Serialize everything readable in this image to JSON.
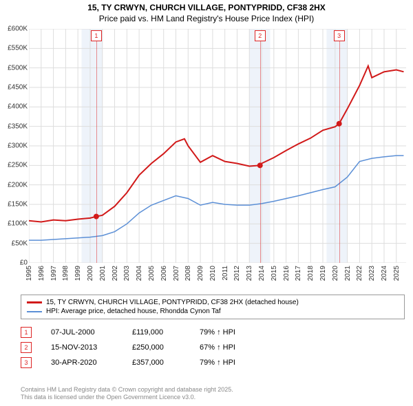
{
  "title_line1": "15, TY CRWYN, CHURCH VILLAGE, PONTYPRIDD, CF38 2HX",
  "title_line2": "Price paid vs. HM Land Registry's House Price Index (HPI)",
  "chart": {
    "type": "line",
    "background_color": "#ffffff",
    "plot_background_color": "#ffffff",
    "grid_color": "#dddddd",
    "shaded_color": "#eef3fa",
    "ylim": [
      0,
      600000
    ],
    "ytick_step": 50000,
    "ytick_labels": [
      "£0",
      "£50K",
      "£100K",
      "£150K",
      "£200K",
      "£250K",
      "£300K",
      "£350K",
      "£400K",
      "£450K",
      "£500K",
      "£550K",
      "£600K"
    ],
    "xlim": [
      1995,
      2025.8
    ],
    "xticks": [
      1995,
      1996,
      1997,
      1998,
      1999,
      2000,
      2001,
      2002,
      2003,
      2004,
      2005,
      2006,
      2007,
      2008,
      2009,
      2010,
      2011,
      2012,
      2013,
      2014,
      2015,
      2016,
      2017,
      2018,
      2019,
      2020,
      2021,
      2022,
      2023,
      2024,
      2025
    ],
    "shaded_bands": [
      [
        1999.3,
        2001.0
      ],
      [
        2013.0,
        2014.7
      ],
      [
        2019.3,
        2021.0
      ]
    ],
    "series": [
      {
        "name": "property",
        "color": "#d11919",
        "line_width": 2,
        "label": "15, TY CRWYN, CHURCH VILLAGE, PONTYPRIDD, CF38 2HX (detached house)",
        "points": [
          [
            1995,
            108000
          ],
          [
            1996,
            105000
          ],
          [
            1997,
            110000
          ],
          [
            1998,
            108000
          ],
          [
            1999,
            112000
          ],
          [
            2000,
            115000
          ],
          [
            2000.5,
            119000
          ],
          [
            2001,
            122000
          ],
          [
            2002,
            145000
          ],
          [
            2003,
            180000
          ],
          [
            2004,
            225000
          ],
          [
            2005,
            255000
          ],
          [
            2006,
            280000
          ],
          [
            2007,
            310000
          ],
          [
            2007.7,
            318000
          ],
          [
            2008,
            300000
          ],
          [
            2009,
            258000
          ],
          [
            2010,
            275000
          ],
          [
            2011,
            260000
          ],
          [
            2012,
            255000
          ],
          [
            2013,
            248000
          ],
          [
            2013.87,
            250000
          ],
          [
            2014,
            255000
          ],
          [
            2015,
            270000
          ],
          [
            2016,
            288000
          ],
          [
            2017,
            305000
          ],
          [
            2018,
            320000
          ],
          [
            2019,
            340000
          ],
          [
            2020,
            349000
          ],
          [
            2020.33,
            357000
          ],
          [
            2021,
            395000
          ],
          [
            2022,
            455000
          ],
          [
            2022.7,
            505000
          ],
          [
            2023,
            475000
          ],
          [
            2024,
            490000
          ],
          [
            2025,
            495000
          ],
          [
            2025.6,
            490000
          ]
        ]
      },
      {
        "name": "hpi",
        "color": "#5b8fd6",
        "line_width": 1.5,
        "label": "HPI: Average price, detached house, Rhondda Cynon Taf",
        "points": [
          [
            1995,
            58000
          ],
          [
            1996,
            58000
          ],
          [
            1997,
            60000
          ],
          [
            1998,
            62000
          ],
          [
            1999,
            64000
          ],
          [
            2000,
            66000
          ],
          [
            2001,
            70000
          ],
          [
            2002,
            80000
          ],
          [
            2003,
            100000
          ],
          [
            2004,
            128000
          ],
          [
            2005,
            148000
          ],
          [
            2006,
            160000
          ],
          [
            2007,
            172000
          ],
          [
            2008,
            165000
          ],
          [
            2009,
            148000
          ],
          [
            2010,
            155000
          ],
          [
            2011,
            150000
          ],
          [
            2012,
            148000
          ],
          [
            2013,
            148000
          ],
          [
            2014,
            152000
          ],
          [
            2015,
            158000
          ],
          [
            2016,
            165000
          ],
          [
            2017,
            172000
          ],
          [
            2018,
            180000
          ],
          [
            2019,
            188000
          ],
          [
            2020,
            195000
          ],
          [
            2021,
            220000
          ],
          [
            2022,
            260000
          ],
          [
            2023,
            268000
          ],
          [
            2024,
            272000
          ],
          [
            2025,
            275000
          ],
          [
            2025.6,
            275000
          ]
        ]
      }
    ],
    "markers": [
      {
        "n": "1",
        "x": 2000.5,
        "y": 119000,
        "color": "#d11919"
      },
      {
        "n": "2",
        "x": 2013.87,
        "y": 250000,
        "color": "#d11919"
      },
      {
        "n": "3",
        "x": 2020.33,
        "y": 357000,
        "color": "#d11919"
      }
    ]
  },
  "transactions": [
    {
      "n": "1",
      "date": "07-JUL-2000",
      "price": "£119,000",
      "delta": "79% ↑ HPI"
    },
    {
      "n": "2",
      "date": "15-NOV-2013",
      "price": "£250,000",
      "delta": "67% ↑ HPI"
    },
    {
      "n": "3",
      "date": "30-APR-2020",
      "price": "£357,000",
      "delta": "79% ↑ HPI"
    }
  ],
  "footer_line1": "Contains HM Land Registry data © Crown copyright and database right 2025.",
  "footer_line2": "This data is licensed under the Open Government Licence v3.0."
}
